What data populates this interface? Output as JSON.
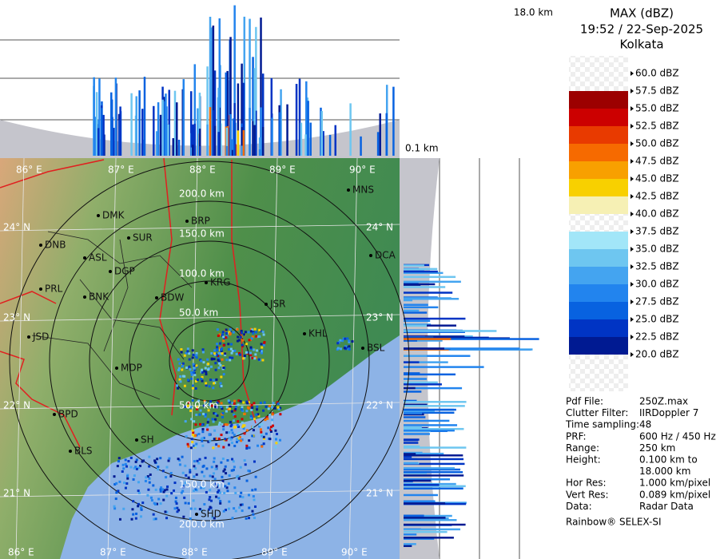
{
  "header": {
    "title": "MAX (dBZ)",
    "time": "19:52 / 22-Sep-2025",
    "location": "Kolkata"
  },
  "heights": {
    "top": "18.0 km",
    "bottom": "0.1 km"
  },
  "legend": {
    "labels": [
      "60.0 dBZ",
      "57.5 dBZ",
      "55.0 dBZ",
      "52.5 dBZ",
      "50.0 dBZ",
      "47.5 dBZ",
      "45.0 dBZ",
      "42.5 dBZ",
      "40.0 dBZ",
      "37.5 dBZ",
      "35.0 dBZ",
      "32.5 dBZ",
      "30.0 dBZ",
      "27.5 dBZ",
      "25.0 dBZ",
      "22.5 dBZ",
      "20.0 dBZ"
    ],
    "band_colors": [
      "none",
      "#9c0000",
      "#cc0000",
      "#e83a00",
      "#f66a00",
      "#f8a000",
      "#f8d000",
      "#f6f0b4",
      "none",
      "#a2e6f8",
      "#6ec6f0",
      "#44a4f0",
      "#2284ee",
      "#0862e0",
      "#0034c4",
      "#001a92"
    ]
  },
  "info": [
    {
      "key": "Pdf File:",
      "value": "250Z.max"
    },
    {
      "key": "Clutter Filter:",
      "value": "IIRDoppler 7"
    },
    {
      "key": "Time sampling:",
      "value": "48"
    },
    {
      "key": "PRF:",
      "value": "600 Hz / 450 Hz"
    },
    {
      "key": "Range:",
      "value": "250 km"
    },
    {
      "key": "Height:",
      "value": "0.100 km to"
    },
    {
      "key": null,
      "value": "18.000 km"
    },
    {
      "key": "Hor Res:",
      "value": "1.000 km/pixel"
    },
    {
      "key": "Vert Res:",
      "value": "0.089 km/pixel"
    },
    {
      "key": "Data:",
      "value": "Radar Data"
    }
  ],
  "footer": "Rainbow® SELEX-SI",
  "map": {
    "lon_labels": [
      "86° E",
      "87° E",
      "88° E",
      "89° E",
      "90° E"
    ],
    "lat_labels": [
      "24° N",
      "23° N",
      "22° N",
      "21° N"
    ],
    "range_labels": [
      "200.0 km",
      "150.0 km",
      "100.0 km",
      "50.0 km",
      "50.0 km",
      "150.0 km",
      "200.0 km"
    ],
    "cities": [
      "MNS",
      "DMK",
      "BRP",
      "SUR",
      "DNB",
      "ASL",
      "DCA",
      "DGP",
      "KRG",
      "PRL",
      "BNK",
      "BDW",
      "JSR",
      "KHL",
      "JSD",
      "BSL",
      "MDP",
      "BPD",
      "SH",
      "BLS",
      "SHD"
    ]
  }
}
